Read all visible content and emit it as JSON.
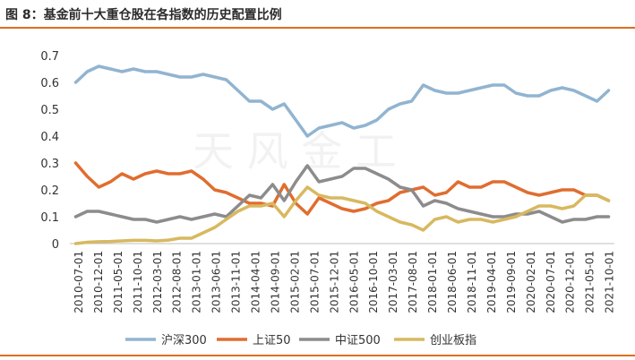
{
  "title": "图 8：基金前十大重仓股在各指数的历史配置比例",
  "watermark": "天 风 金 工",
  "colors": {
    "沪深300": "#91b4d0",
    "上证50": "#e06d2f",
    "中证500": "#8c8c8c",
    "创业板指": "#d8b860",
    "rule": "#e06d1e"
  },
  "chart_data": {
    "type": "line",
    "title": "",
    "xlabel": "",
    "ylabel": "",
    "ylim": [
      0,
      0.7
    ],
    "yticks": [
      0,
      0.1,
      0.2,
      0.3,
      0.4,
      0.5,
      0.6,
      0.7
    ],
    "yticks_labels": [
      "0",
      "0.1",
      "0.2",
      "0.3",
      "0.4",
      "0.5",
      "0.6",
      "0.7"
    ],
    "grid": false,
    "legend_position": "bottom",
    "x": [
      "2010-07",
      "2010-10",
      "2011-01",
      "2011-04",
      "2011-07",
      "2011-10",
      "2012-01",
      "2012-04",
      "2012-07",
      "2012-10",
      "2013-01",
      "2013-04",
      "2013-07",
      "2013-10",
      "2014-01",
      "2014-04",
      "2014-07",
      "2014-10",
      "2015-01",
      "2015-04",
      "2015-07",
      "2015-10",
      "2016-01",
      "2016-04",
      "2016-07",
      "2016-10",
      "2017-01",
      "2017-04",
      "2017-07",
      "2017-10",
      "2018-01",
      "2018-04",
      "2018-07",
      "2018-10",
      "2019-01",
      "2019-04",
      "2019-07",
      "2019-10",
      "2020-01",
      "2020-04",
      "2020-07",
      "2020-10",
      "2021-01",
      "2021-04",
      "2021-07",
      "2021-10",
      "2022-01"
    ],
    "x_tick_labels": [
      "2010-07-01",
      "2010-12-01",
      "2011-05-01",
      "2011-10-01",
      "2012-03-01",
      "2012-08-01",
      "2013-01-01",
      "2013-06-01",
      "2013-11-01",
      "2014-04-01",
      "2014-09-01",
      "2015-02-01",
      "2015-07-01",
      "2015-12-01",
      "2016-05-01",
      "2016-10-01",
      "2017-03-01",
      "2017-08-01",
      "2018-01-01",
      "2018-06-01",
      "2018-11-01",
      "2019-04-01",
      "2019-09-01",
      "2020-02-01",
      "2020-07-01",
      "2020-12-01",
      "2021-05-01",
      "2021-10-01"
    ],
    "series": [
      {
        "name": "沪深300",
        "values": [
          0.6,
          0.64,
          0.66,
          0.65,
          0.64,
          0.65,
          0.64,
          0.64,
          0.63,
          0.62,
          0.62,
          0.63,
          0.62,
          0.61,
          0.57,
          0.53,
          0.53,
          0.5,
          0.52,
          0.46,
          0.4,
          0.43,
          0.44,
          0.45,
          0.43,
          0.44,
          0.46,
          0.5,
          0.52,
          0.53,
          0.59,
          0.57,
          0.56,
          0.56,
          0.57,
          0.58,
          0.59,
          0.59,
          0.56,
          0.55,
          0.55,
          0.57,
          0.58,
          0.57,
          0.55,
          0.53,
          0.57
        ]
      },
      {
        "name": "上证50",
        "values": [
          0.3,
          0.25,
          0.21,
          0.23,
          0.26,
          0.24,
          0.26,
          0.27,
          0.26,
          0.26,
          0.27,
          0.24,
          0.2,
          0.19,
          0.17,
          0.15,
          0.15,
          0.14,
          0.22,
          0.15,
          0.11,
          0.17,
          0.15,
          0.13,
          0.12,
          0.13,
          0.15,
          0.16,
          0.19,
          0.2,
          0.21,
          0.18,
          0.19,
          0.23,
          0.21,
          0.21,
          0.23,
          0.23,
          0.21,
          0.19,
          0.18,
          0.19,
          0.2,
          0.2,
          0.18,
          0.18,
          0.16
        ]
      },
      {
        "name": "中证500",
        "values": [
          0.1,
          0.12,
          0.12,
          0.11,
          0.1,
          0.09,
          0.09,
          0.08,
          0.09,
          0.1,
          0.09,
          0.1,
          0.11,
          0.1,
          0.14,
          0.18,
          0.17,
          0.22,
          0.16,
          0.23,
          0.29,
          0.23,
          0.24,
          0.25,
          0.28,
          0.28,
          0.26,
          0.24,
          0.21,
          0.2,
          0.14,
          0.16,
          0.15,
          0.13,
          0.12,
          0.11,
          0.1,
          0.1,
          0.11,
          0.11,
          0.12,
          0.1,
          0.08,
          0.09,
          0.09,
          0.1,
          0.1
        ]
      },
      {
        "name": "创业板指",
        "values": [
          0.0,
          0.005,
          0.007,
          0.008,
          0.01,
          0.012,
          0.012,
          0.01,
          0.013,
          0.02,
          0.02,
          0.04,
          0.06,
          0.09,
          0.12,
          0.14,
          0.14,
          0.15,
          0.1,
          0.16,
          0.21,
          0.18,
          0.17,
          0.17,
          0.16,
          0.15,
          0.12,
          0.1,
          0.08,
          0.07,
          0.05,
          0.09,
          0.1,
          0.08,
          0.09,
          0.09,
          0.08,
          0.09,
          0.1,
          0.12,
          0.14,
          0.14,
          0.13,
          0.14,
          0.18,
          0.18,
          0.16
        ]
      }
    ]
  }
}
